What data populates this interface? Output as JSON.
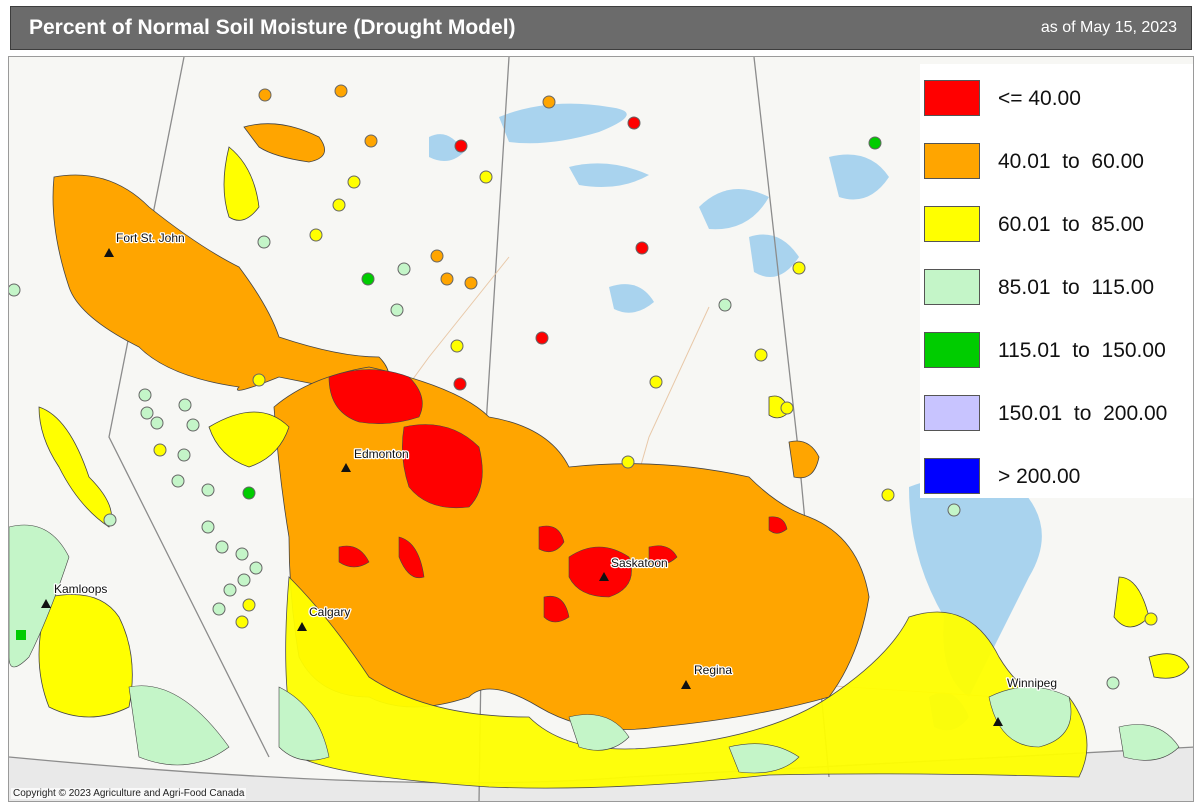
{
  "header": {
    "title": "Percent of Normal Soil Moisture (Drought Model)",
    "as_of": "as of May 15, 2023"
  },
  "colors": {
    "header_bg": "#6b6b6b",
    "water": "#a9d3ee",
    "land": "#f7f7f4",
    "c_le40": "#ff0000",
    "c_40_60": "#ffa500",
    "c_60_85": "#ffff00",
    "c_85_115": "#c4f5c8",
    "c_115_150": "#00cc00",
    "c_150_200": "#c8c4ff",
    "c_gt200": "#0000ff"
  },
  "legend": {
    "items": [
      {
        "label": "<= 40.00",
        "color": "#ff0000"
      },
      {
        "label": "40.01  to  60.00",
        "color": "#ffa500"
      },
      {
        "label": "60.01  to  85.00",
        "color": "#ffff00"
      },
      {
        "label": "85.01  to  115.00",
        "color": "#c4f5c8"
      },
      {
        "label": "115.01  to  150.00",
        "color": "#00cc00"
      },
      {
        "label": "150.01  to  200.00",
        "color": "#c8c4ff"
      },
      {
        "label": "> 200.00",
        "color": "#0000ff"
      }
    ]
  },
  "cities": [
    {
      "name": "Fort St. John"
    },
    {
      "name": "Edmonton"
    },
    {
      "name": "Kamloops"
    },
    {
      "name": "Calgary"
    },
    {
      "name": "Saskatoon"
    },
    {
      "name": "Regina"
    },
    {
      "name": "Winnipeg"
    }
  ],
  "footer": {
    "copyright": "Copyright © 2023 Agriculture and Agri-Food Canada"
  }
}
